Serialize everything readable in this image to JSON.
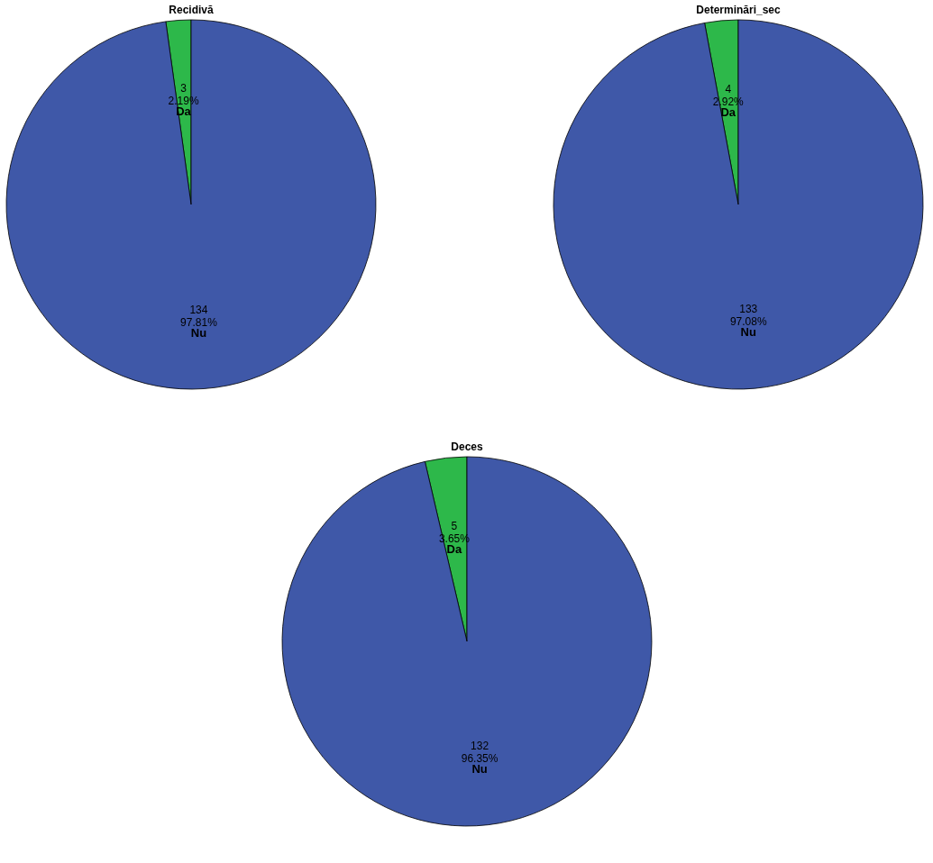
{
  "chart_data": [
    {
      "type": "pie",
      "title": "Recidivă",
      "categories": [
        "Da",
        "Nu"
      ],
      "values": [
        3,
        134
      ],
      "colors": [
        "#2db84a",
        "#3f58a8"
      ],
      "value_labels": [
        "3\n2.19%",
        "134\n97.81%"
      ]
    },
    {
      "type": "pie",
      "title": "Determinări_sec",
      "categories": [
        "Da",
        "Nu"
      ],
      "values": [
        4,
        133
      ],
      "colors": [
        "#2db84a",
        "#3f58a8"
      ],
      "value_labels": [
        "4\n2.92%",
        "133\n97.08%"
      ]
    },
    {
      "type": "pie",
      "title": "Deces",
      "categories": [
        "Da",
        "Nu"
      ],
      "values": [
        5,
        132
      ],
      "colors": [
        "#2db84a",
        "#3f58a8"
      ],
      "value_labels": [
        "5\n3.65%",
        "132\n96.35%"
      ]
    }
  ]
}
